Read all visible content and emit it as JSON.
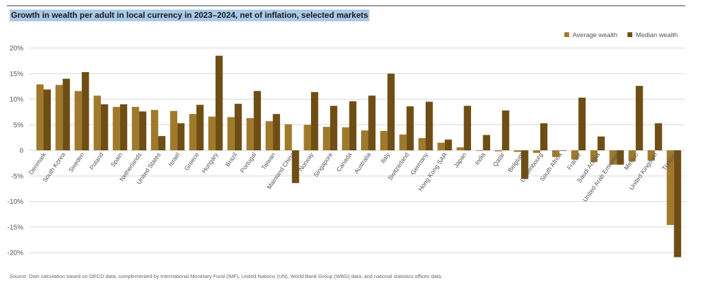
{
  "chart_data": {
    "type": "bar",
    "title": "Growth in wealth per adult in local currency in 2023–2024, net of inflation, selected markets",
    "source": "Source: Own calculation based on OECD data, complemented by International Monetary Fund (IMF), United Nations (UN), World Bank Group (WBG) data, and national statistics offices data.",
    "xlabel": "",
    "ylabel": "",
    "ylim": [
      -20,
      20
    ],
    "yticks": [
      20,
      15,
      10,
      5,
      0,
      -5,
      -10,
      -15,
      -20
    ],
    "ytick_labels": [
      "20%",
      "15%",
      "10%",
      "5%",
      "0",
      "-5%",
      "-10%",
      "-15%",
      "-20%"
    ],
    "grid": true,
    "legend_position": "top-right",
    "categories": [
      "Denmark",
      "South Korea",
      "Sweden",
      "Poland",
      "Spain",
      "Netherlands",
      "United States",
      "Israel",
      "Greece",
      "Hungary",
      "Brazil",
      "Portugal",
      "Taiwan",
      "Mainland China",
      "Norway",
      "Singapore",
      "Canada",
      "Australia",
      "Italy",
      "Switzerland",
      "Germany",
      "Hong Kong SAR",
      "Japan",
      "India",
      "Qatar",
      "Belgium",
      "Luxembourg",
      "South Africa",
      "France",
      "Saudi Arabia",
      "United Arab Emirates",
      "Mexico",
      "United Kingdom",
      "Türkiye"
    ],
    "series": [
      {
        "name": "Average wealth",
        "color": "#a07a2c",
        "values": [
          12.9,
          12.8,
          11.6,
          10.7,
          8.5,
          8.5,
          7.9,
          7.7,
          7.1,
          6.6,
          6.5,
          6.3,
          5.7,
          5.1,
          5.0,
          4.6,
          4.5,
          3.9,
          3.8,
          3.1,
          2.4,
          1.5,
          0.6,
          -0.1,
          -0.2,
          -0.3,
          -0.5,
          -1.3,
          -1.8,
          -2.3,
          -2.8,
          -2.2,
          -2.0,
          -14.6
        ]
      },
      {
        "name": "Median wealth",
        "color": "#6e4e14",
        "values": [
          11.9,
          14.0,
          15.3,
          9.0,
          9.0,
          7.6,
          2.8,
          5.3,
          8.9,
          18.5,
          9.1,
          11.6,
          7.1,
          -6.4,
          11.4,
          8.7,
          9.6,
          10.7,
          15.0,
          8.6,
          9.5,
          2.1,
          8.7,
          3.0,
          7.8,
          -5.6,
          5.3,
          -0.1,
          10.3,
          2.7,
          -2.8,
          12.6,
          5.3,
          -20.9
        ]
      }
    ]
  }
}
